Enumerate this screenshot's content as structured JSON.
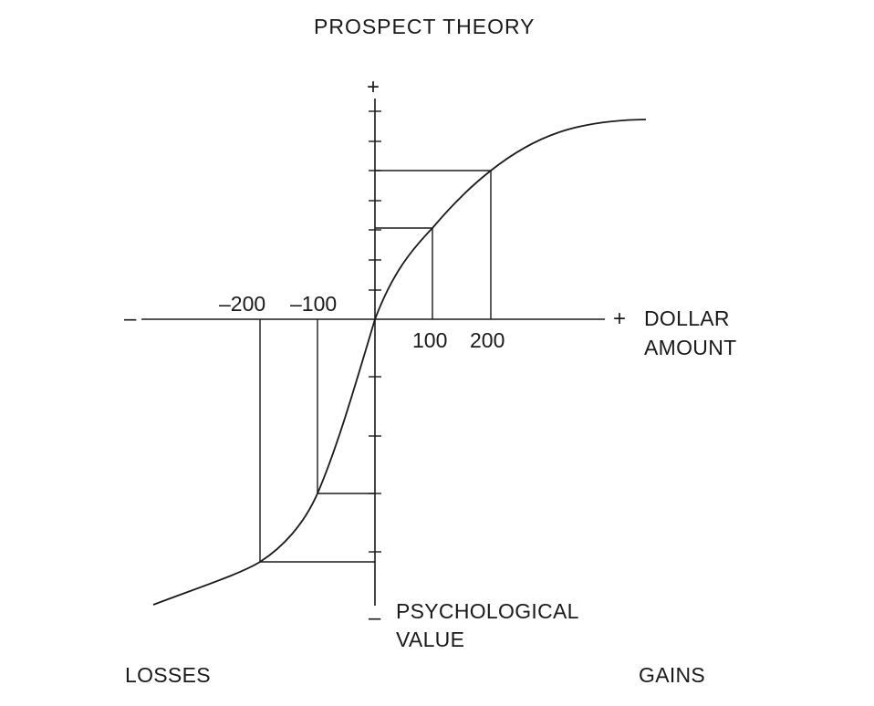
{
  "title": "PROSPECT THEORY",
  "x_axis": {
    "label_line1": "DOLLAR",
    "label_line2": "AMOUNT",
    "positive_sign": "+",
    "negative_sign": "–",
    "tick_labels": [
      "–200",
      "–100",
      "100",
      "200"
    ]
  },
  "y_axis": {
    "label_line1": "PSYCHOLOGICAL",
    "label_line2": "VALUE",
    "positive_sign": "+",
    "negative_sign": "–"
  },
  "region_labels": {
    "losses": "LOSSES",
    "gains": "GAINS"
  },
  "chart_data": {
    "type": "line",
    "title": "PROSPECT THEORY",
    "xlabel": "DOLLAR AMOUNT",
    "ylabel": "PSYCHOLOGICAL VALUE",
    "marked_points": [
      {
        "x": -200,
        "y": -4.1
      },
      {
        "x": -100,
        "y": -3.0
      },
      {
        "x": 100,
        "y": 1.5
      },
      {
        "x": 200,
        "y": 2.5
      }
    ]
  }
}
